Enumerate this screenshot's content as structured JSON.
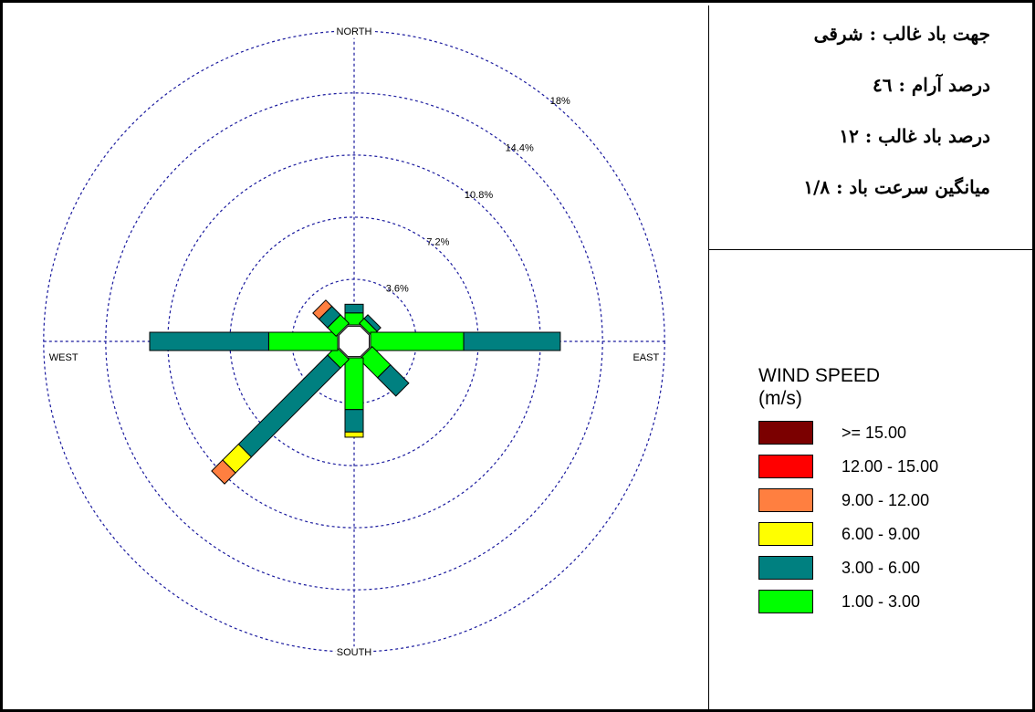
{
  "stats": [
    "جهت باد غالب : شرقی",
    "درصد آرام : ٤٦",
    "درصد باد غالب : ١٢",
    "میانگین سرعت باد : ١/٨"
  ],
  "legend": {
    "title": "WIND SPEED",
    "unit": "(m/s)",
    "items": [
      {
        "label": ">= 15.00",
        "color": "#7b0000"
      },
      {
        "label": "12.00 - 15.00",
        "color": "#ff0000"
      },
      {
        "label": "9.00 - 12.00",
        "color": "#ff7f40"
      },
      {
        "label": "6.00 - 9.00",
        "color": "#ffff00"
      },
      {
        "label": "3.00 - 6.00",
        "color": "#008080"
      },
      {
        "label": "1.00 - 3.00",
        "color": "#00ff00"
      }
    ]
  },
  "chart_data": {
    "type": "wind-rose",
    "directions": [
      "NORTH",
      "EAST",
      "SOUTH",
      "WEST"
    ],
    "rings": [
      3.6,
      7.2,
      10.8,
      14.4,
      18
    ],
    "ring_labels": [
      "3.6%",
      "7.2%",
      "10.8%",
      "14.4%",
      "18%"
    ],
    "grid": true,
    "legend_position": "right",
    "speed_bins": [
      "1.00 - 3.00",
      "3.00 - 6.00",
      "6.00 - 9.00",
      "9.00 - 12.00",
      "12.00 - 15.00",
      ">= 15.00"
    ],
    "colors": [
      "#00ff00",
      "#008080",
      "#ffff00",
      "#ff7f40",
      "#ff0000",
      "#7b0000"
    ],
    "calm_percent": 46,
    "sectors": [
      {
        "direction": "N",
        "angle": 0,
        "values": [
          0.7,
          0.5,
          0,
          0,
          0,
          0
        ]
      },
      {
        "direction": "NE",
        "angle": 45,
        "values": [
          0.4,
          0.3,
          0,
          0,
          0,
          0
        ]
      },
      {
        "direction": "E",
        "angle": 90,
        "values": [
          5.4,
          5.6,
          0,
          0,
          0,
          0
        ]
      },
      {
        "direction": "SE",
        "angle": 135,
        "values": [
          1.5,
          1.5,
          0,
          0,
          0,
          0
        ]
      },
      {
        "direction": "S",
        "angle": 180,
        "values": [
          3.0,
          1.3,
          0.3,
          0,
          0,
          0
        ]
      },
      {
        "direction": "SW",
        "angle": 225,
        "values": [
          0.7,
          7.3,
          1.3,
          0.9,
          0,
          0
        ]
      },
      {
        "direction": "W",
        "angle": 270,
        "values": [
          4.0,
          6.9,
          0,
          0,
          0,
          0
        ]
      },
      {
        "direction": "NW",
        "angle": 315,
        "values": [
          0.7,
          0.7,
          0,
          0.5,
          0,
          0
        ]
      }
    ]
  }
}
